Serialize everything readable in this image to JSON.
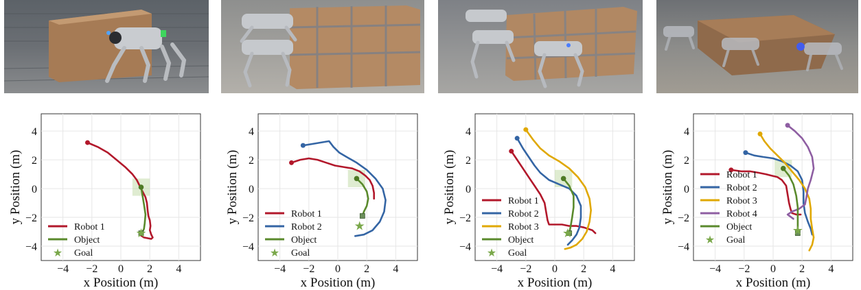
{
  "photos": [
    {
      "name": "photo-1-robot-pushing-box"
    },
    {
      "name": "photo-2-two-robots-pushing-box"
    },
    {
      "name": "photo-3-three-robots-pushing-box"
    },
    {
      "name": "photo-4-four-robots-pushing-box"
    }
  ],
  "chart_data": [
    {
      "type": "line",
      "xlabel": "x Position (m)",
      "ylabel": "y Position (m)",
      "xlim": [
        -5.5,
        5.5
      ],
      "ylim": [
        -5,
        5.2
      ],
      "xticks": [
        -4,
        -2,
        0,
        2,
        4
      ],
      "yticks": [
        -4,
        -2,
        0,
        2,
        4
      ],
      "grid": true,
      "legend_position": "lower-left",
      "series": [
        {
          "name": "Robot 1",
          "role": "robot",
          "color": "#b2182b",
          "x": [
            -2.3,
            -1.6,
            -0.9,
            -0.3,
            0.3,
            0.8,
            1.1,
            1.3,
            1.5,
            1.7,
            1.8,
            1.85,
            1.9,
            2.0,
            2.05,
            2.0,
            2.1,
            2.2,
            2.1,
            1.6,
            1.3
          ],
          "y": [
            3.2,
            2.9,
            2.5,
            2.0,
            1.5,
            1.0,
            0.6,
            0.2,
            -0.2,
            -0.6,
            -1.0,
            -1.5,
            -1.9,
            -2.2,
            -2.6,
            -2.9,
            -3.2,
            -3.4,
            -3.5,
            -3.4,
            -3.2
          ]
        },
        {
          "name": "Object",
          "role": "object",
          "color": "#5a8a2c",
          "x": [
            1.4,
            1.5,
            1.6,
            1.7,
            1.65,
            1.6,
            1.5,
            1.4
          ],
          "y": [
            0.1,
            -0.5,
            -1.1,
            -1.8,
            -2.4,
            -2.8,
            -3.0,
            -3.1
          ]
        },
        {
          "name": "Goal",
          "role": "goal",
          "x": [
            1.4
          ],
          "y": [
            -3.1
          ]
        }
      ]
    },
    {
      "type": "line",
      "xlabel": "x Position (m)",
      "ylabel": "y Position (m)",
      "xlim": [
        -5.5,
        5.5
      ],
      "ylim": [
        -5,
        5.2
      ],
      "xticks": [
        -4,
        -2,
        0,
        2,
        4
      ],
      "yticks": [
        -4,
        -2,
        0,
        2,
        4
      ],
      "grid": true,
      "legend_position": "lower-left",
      "series": [
        {
          "name": "Robot 1",
          "role": "robot",
          "color": "#b2182b",
          "x": [
            -3.2,
            -2.6,
            -2.0,
            -1.4,
            -0.8,
            -0.2,
            0.4,
            1.0,
            1.5,
            1.9,
            2.2,
            2.4,
            2.5,
            2.5
          ],
          "y": [
            1.8,
            2.0,
            2.1,
            2.0,
            1.8,
            1.6,
            1.5,
            1.4,
            1.2,
            0.9,
            0.6,
            0.2,
            -0.3,
            -0.7
          ]
        },
        {
          "name": "Robot 2",
          "role": "robot",
          "color": "#3465a4",
          "x": [
            -2.4,
            -1.8,
            -1.2,
            -0.6,
            -0.3,
            0.1,
            0.6,
            1.3,
            2.0,
            2.6,
            3.1,
            3.3,
            3.2,
            2.9,
            2.4,
            1.8,
            1.2
          ],
          "y": [
            3.0,
            3.1,
            3.2,
            3.3,
            2.9,
            2.5,
            2.2,
            1.8,
            1.3,
            0.7,
            0.0,
            -0.8,
            -1.6,
            -2.3,
            -2.9,
            -3.2,
            -3.3
          ]
        },
        {
          "name": "Object",
          "role": "object",
          "color": "#5a8a2c",
          "x": [
            1.3,
            1.7,
            2.0,
            2.1,
            2.0,
            1.8,
            1.7
          ],
          "y": [
            0.7,
            0.3,
            -0.2,
            -0.7,
            -1.2,
            -1.6,
            -1.9
          ]
        },
        {
          "name": "Goal",
          "role": "goal",
          "x": [
            1.5
          ],
          "y": [
            -2.6
          ]
        }
      ]
    },
    {
      "type": "line",
      "xlabel": "x Position (m)",
      "ylabel": "y Position (m)",
      "xlim": [
        -5.5,
        5.5
      ],
      "ylim": [
        -5,
        5.2
      ],
      "xticks": [
        -4,
        -2,
        0,
        2,
        4
      ],
      "yticks": [
        -4,
        -2,
        0,
        2,
        4
      ],
      "grid": true,
      "legend_position": "lower-left",
      "series": [
        {
          "name": "Robot 1",
          "role": "robot",
          "color": "#b2182b",
          "x": [
            -3.0,
            -2.6,
            -2.2,
            -1.8,
            -1.4,
            -1.0,
            -0.7,
            -0.6,
            -0.5,
            -0.4,
            0.0,
            0.5,
            1.0,
            1.5,
            2.0,
            2.6,
            2.8
          ],
          "y": [
            2.6,
            2.0,
            1.4,
            0.8,
            0.2,
            -0.4,
            -1.0,
            -1.6,
            -2.2,
            -2.5,
            -2.5,
            -2.5,
            -2.6,
            -2.6,
            -2.7,
            -2.9,
            -3.1
          ]
        },
        {
          "name": "Robot 2",
          "role": "robot",
          "color": "#3465a4",
          "x": [
            -2.6,
            -2.2,
            -1.8,
            -1.4,
            -1.0,
            -0.4,
            0.3,
            1.0,
            1.5,
            1.8,
            1.8,
            1.7,
            1.5,
            1.2,
            0.9
          ],
          "y": [
            3.5,
            2.8,
            2.2,
            1.6,
            1.1,
            0.6,
            0.3,
            0.0,
            -0.5,
            -1.2,
            -2.0,
            -2.7,
            -3.2,
            -3.6,
            -3.9
          ]
        },
        {
          "name": "Robot 3",
          "role": "robot",
          "color": "#e0a800",
          "x": [
            -2.0,
            -1.5,
            -1.0,
            -0.4,
            0.3,
            1.0,
            1.6,
            2.1,
            2.4,
            2.5,
            2.4,
            2.2,
            1.9,
            1.5,
            1.1,
            0.7
          ],
          "y": [
            4.1,
            3.4,
            2.8,
            2.3,
            1.9,
            1.4,
            0.8,
            0.1,
            -0.7,
            -1.5,
            -2.3,
            -3.0,
            -3.5,
            -3.9,
            -4.1,
            -4.2
          ]
        },
        {
          "name": "Object",
          "role": "object",
          "color": "#5a8a2c",
          "x": [
            0.6,
            1.0,
            1.3,
            1.3,
            1.2,
            1.1,
            1.0
          ],
          "y": [
            0.7,
            0.2,
            -0.5,
            -1.3,
            -2.0,
            -2.6,
            -3.1
          ]
        },
        {
          "name": "Goal",
          "role": "goal",
          "x": [
            0.9
          ],
          "y": [
            -3.1
          ]
        }
      ]
    },
    {
      "type": "line",
      "xlabel": "x Position (m)",
      "ylabel": "y Position (m)",
      "xlim": [
        -5.5,
        5.5
      ],
      "ylim": [
        -5,
        5.2
      ],
      "xticks": [
        -4,
        -2,
        0,
        2,
        4
      ],
      "yticks": [
        -4,
        -2,
        0,
        2,
        4
      ],
      "grid": true,
      "legend_position": "left",
      "series": [
        {
          "name": "Robot 1",
          "role": "robot",
          "color": "#b2182b",
          "x": [
            -2.9,
            -2.2,
            -1.6,
            -1.0,
            -0.5,
            -0.1,
            0.3,
            0.6,
            0.9,
            1.0,
            1.1,
            1.2,
            1.3,
            1.6,
            1.9
          ],
          "y": [
            1.3,
            1.2,
            1.2,
            1.1,
            1.0,
            0.9,
            0.8,
            0.6,
            0.2,
            -0.4,
            -1.0,
            -1.4,
            -1.7,
            -1.8,
            -1.8
          ]
        },
        {
          "name": "Robot 2",
          "role": "robot",
          "color": "#3465a4",
          "x": [
            -1.9,
            -1.3,
            -0.7,
            0.0,
            0.6,
            1.2,
            1.7,
            2.0,
            2.1,
            2.1,
            2.2,
            2.4,
            2.6,
            2.7
          ],
          "y": [
            2.5,
            2.3,
            2.2,
            2.1,
            1.9,
            1.6,
            1.2,
            0.6,
            -0.2,
            -1.0,
            -1.7,
            -2.3,
            -2.8,
            -3.2
          ]
        },
        {
          "name": "Robot 3",
          "role": "robot",
          "color": "#e0a800",
          "x": [
            -0.9,
            -0.6,
            -0.2,
            0.3,
            0.8,
            1.3,
            1.8,
            2.2,
            2.5,
            2.6,
            2.6,
            2.7,
            2.8,
            2.7,
            2.5
          ],
          "y": [
            3.8,
            3.3,
            2.8,
            2.3,
            1.8,
            1.2,
            0.6,
            0.0,
            -0.7,
            -1.4,
            -2.1,
            -2.8,
            -3.4,
            -3.9,
            -4.3
          ]
        },
        {
          "name": "Robot 4",
          "role": "robot",
          "color": "#8e5ea2",
          "x": [
            1.0,
            1.5,
            2.0,
            2.4,
            2.7,
            2.8,
            2.6,
            2.4,
            2.3,
            2.2,
            1.8,
            1.3,
            1.0,
            1.4
          ],
          "y": [
            4.4,
            4.0,
            3.5,
            2.9,
            2.2,
            1.4,
            0.6,
            0.0,
            -0.6,
            -1.1,
            -1.4,
            -1.6,
            -1.8,
            -2.1
          ]
        },
        {
          "name": "Object",
          "role": "object",
          "color": "#5a8a2c",
          "x": [
            0.7,
            1.1,
            1.4,
            1.6,
            1.7,
            1.7,
            1.7
          ],
          "y": [
            1.4,
            0.9,
            0.3,
            -0.5,
            -1.3,
            -2.1,
            -3.1
          ]
        },
        {
          "name": "Goal",
          "role": "goal",
          "x": [
            1.7
          ],
          "y": [
            -2.9
          ]
        }
      ]
    }
  ]
}
